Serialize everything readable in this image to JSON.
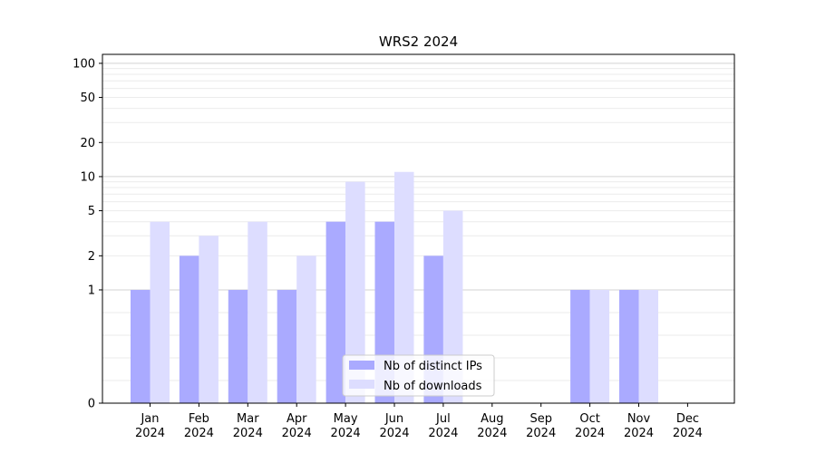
{
  "chart_data": {
    "type": "bar",
    "title": "WRS2 2024",
    "xlabel": "",
    "ylabel": "",
    "yscale": "symlog",
    "y_ticks": [
      "0",
      "1",
      "2",
      "5",
      "10",
      "20",
      "50",
      "100"
    ],
    "y_tick_values": [
      0,
      1,
      2,
      5,
      10,
      20,
      50,
      100
    ],
    "ylim": [
      0,
      120
    ],
    "categories": [
      [
        "Jan",
        "2024"
      ],
      [
        "Feb",
        "2024"
      ],
      [
        "Mar",
        "2024"
      ],
      [
        "Apr",
        "2024"
      ],
      [
        "May",
        "2024"
      ],
      [
        "Jun",
        "2024"
      ],
      [
        "Jul",
        "2024"
      ],
      [
        "Aug",
        "2024"
      ],
      [
        "Sep",
        "2024"
      ],
      [
        "Oct",
        "2024"
      ],
      [
        "Nov",
        "2024"
      ],
      [
        "Dec",
        "2024"
      ]
    ],
    "series": [
      {
        "name": "Nb of distinct IPs",
        "color": "#aaaaff",
        "values": [
          1,
          2,
          1,
          1,
          4,
          4,
          2,
          0,
          0,
          1,
          1,
          0
        ]
      },
      {
        "name": "Nb of downloads",
        "color": "#ddddff",
        "values": [
          4,
          3,
          4,
          2,
          9,
          11,
          5,
          0,
          0,
          1,
          1,
          0
        ]
      }
    ],
    "grid": true,
    "legend_position": "bottom-center"
  }
}
